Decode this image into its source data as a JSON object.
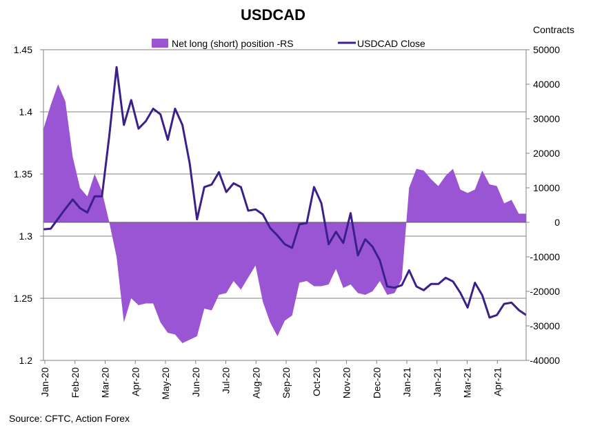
{
  "chart_data": {
    "type": "area+line",
    "title": "USDCAD",
    "source": "Source: CFTC, Action Forex",
    "right_axis_title": "Contracts",
    "legend": {
      "position": "top-center",
      "area_label": "Net long (short) position -RS",
      "line_label": "USDCAD Close"
    },
    "x_tick_labels": [
      "Jan-20",
      "Feb-20",
      "Mar-20",
      "Apr-20",
      "May-20",
      "Jun-20",
      "Jul-20",
      "Aug-20",
      "Sep-20",
      "Oct-20",
      "Nov-20",
      "Dec-20",
      "Jan-21",
      "Jan-21",
      "Mar-21",
      "Apr-21"
    ],
    "y_left": {
      "min": 1.2,
      "max": 1.45,
      "ticks": [
        "1.2",
        "1.25",
        "1.3",
        "1.35",
        "1.4",
        "1.45"
      ]
    },
    "y_right": {
      "min": -40000,
      "max": 50000,
      "ticks": [
        "-40000",
        "-30000",
        "-20000",
        "-10000",
        "0",
        "10000",
        "20000",
        "30000",
        "40000",
        "50000"
      ]
    },
    "gridlines": true,
    "colors": {
      "area": "#9955d4",
      "line": "#3b1f8a",
      "grid": "#808080"
    },
    "net_position_contracts": [
      27000,
      34000,
      40000,
      35000,
      19000,
      10000,
      7500,
      14000,
      9000,
      0,
      -10000,
      -29000,
      -22000,
      -24000,
      -23500,
      -23500,
      -29000,
      -32000,
      -32500,
      -35000,
      -34000,
      -33000,
      -25000,
      -25500,
      -21000,
      -20500,
      -17000,
      -19500,
      -16000,
      -12500,
      -23000,
      -29000,
      -33000,
      -28500,
      -27000,
      -17500,
      -17000,
      -18500,
      -18500,
      -18000,
      -13500,
      -19000,
      -18000,
      -20500,
      -21000,
      -20000,
      -17000,
      -21000,
      -20500,
      -16500,
      10000,
      15500,
      15000,
      12500,
      10500,
      13500,
      15500,
      9500,
      8500,
      9500,
      15000,
      11000,
      10500,
      5500,
      6500,
      2500,
      2500
    ],
    "usdcad_close": [
      1.3055,
      1.306,
      1.314,
      1.322,
      1.3295,
      1.3225,
      1.319,
      1.332,
      1.332,
      1.3805,
      1.436,
      1.3895,
      1.4095,
      1.3865,
      1.3925,
      1.4025,
      1.398,
      1.3775,
      1.4025,
      1.3895,
      1.3585,
      1.3135,
      1.3395,
      1.3415,
      1.3515,
      1.3355,
      1.3425,
      1.3395,
      1.3205,
      1.3215,
      1.3175,
      1.3065,
      1.3005,
      1.2935,
      1.2905,
      1.3095,
      1.3105,
      1.3395,
      1.3265,
      1.2935,
      1.3035,
      1.2945,
      1.3185,
      1.2845,
      1.2975,
      1.2915,
      1.2805,
      1.2595,
      1.2585,
      1.2605,
      1.2725,
      1.2595,
      1.2565,
      1.2615,
      1.2615,
      1.2665,
      1.2635,
      1.2545,
      1.2425,
      1.2625,
      1.2525,
      1.2345,
      1.2365,
      1.2455,
      1.2465,
      1.2405,
      1.2365
    ]
  }
}
